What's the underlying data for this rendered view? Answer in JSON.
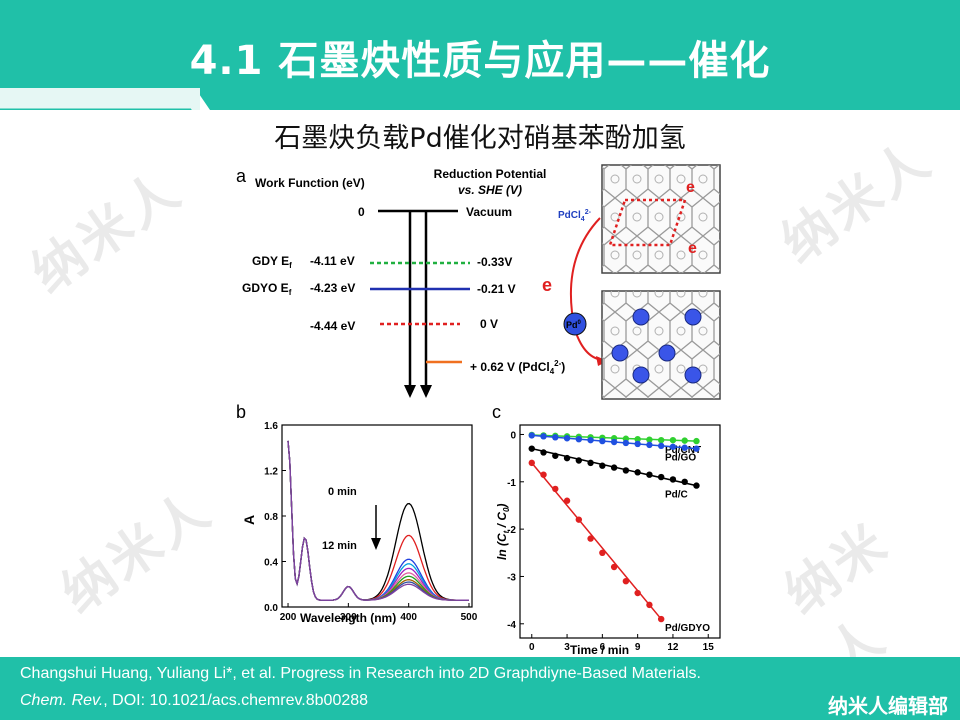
{
  "header": {
    "title": "4.1  石墨炔性质与应用——催化",
    "subtitle": "石墨炔负载Pd催化对硝基苯酚加氢",
    "bg_color": "#20c0a8"
  },
  "watermark": {
    "text": "纳米人"
  },
  "panel_a": {
    "label": "a",
    "left_header": "Work Function (eV)",
    "right_header_1": "Reduction Potential",
    "right_header_2": "vs. SHE (V)",
    "zero": "0",
    "vacuum": "Vacuum",
    "gdy": "GDY E",
    "gdy_sub": "f",
    "gdy_val": "-4.11 eV",
    "gdy_pot": "-0.33V",
    "gdyo": "GDYO E",
    "gdyo_sub": "f",
    "gdyo_val": "-4.23 eV",
    "gdyo_pot": "-0.21 V",
    "she_val": "-4.44 eV",
    "she_pot": "0 V",
    "pd_pot_a": "+ 0.62 V (PdCl",
    "pd_pot_b": "4",
    "pd_pot_c": "2-",
    "pd_pot_d": ")",
    "pdcl_a": "PdCl",
    "pdcl_b": "4",
    "pdcl_c": "2-",
    "e_label": "e",
    "pd_label": "Pd",
    "pd_sup": "0"
  },
  "chart_data": [
    {
      "type": "line",
      "panel": "b",
      "xlabel": "Wavelength (nm)",
      "ylabel": "A",
      "xlim": [
        190,
        505
      ],
      "ylim": [
        0.0,
        1.6
      ],
      "x_ticks": [
        "200",
        "300",
        "400",
        "500"
      ],
      "y_ticks": [
        "0.0",
        "0.4",
        "0.8",
        "1.2",
        "1.6"
      ],
      "annotations": [
        "0 min",
        "12 min"
      ],
      "series": [
        {
          "peak": 0.85,
          "color": "#000000"
        },
        {
          "peak": 0.57,
          "color": "#e02020"
        },
        {
          "peak": 0.36,
          "color": "#2040e0"
        },
        {
          "peak": 0.32,
          "color": "#00a0e0"
        },
        {
          "peak": 0.28,
          "color": "#a020c0"
        },
        {
          "peak": 0.24,
          "color": "#e060a0"
        },
        {
          "peak": 0.21,
          "color": "#20a020"
        },
        {
          "peak": 0.18,
          "color": "#a06000"
        },
        {
          "peak": 0.16,
          "color": "#3050a0"
        },
        {
          "peak": 0.14,
          "color": "#8040a0"
        }
      ]
    },
    {
      "type": "scatter",
      "panel": "c",
      "xlabel": "Time / min",
      "ylim": [
        -4.3,
        0.2
      ],
      "xlim": [
        -1,
        16
      ],
      "x_ticks": [
        "0",
        "3",
        "6",
        "9",
        "12",
        "15"
      ],
      "y_ticks": [
        "0",
        "-1",
        "-2",
        "-3",
        "-4"
      ],
      "series": [
        {
          "name": "Pd/CNT",
          "color": "#30d030",
          "x": [
            0,
            1,
            2,
            3,
            4,
            5,
            6,
            7,
            8,
            9,
            10,
            11,
            12,
            13,
            14
          ],
          "y": [
            -0.01,
            -0.02,
            -0.03,
            -0.04,
            -0.05,
            -0.06,
            -0.07,
            -0.08,
            -0.09,
            -0.1,
            -0.11,
            -0.12,
            -0.12,
            -0.13,
            -0.14
          ]
        },
        {
          "name": "Pd/GO",
          "color": "#2050e0",
          "x": [
            0,
            1,
            2,
            3,
            4,
            5,
            6,
            7,
            8,
            9,
            10,
            11,
            12,
            13,
            14
          ],
          "y": [
            -0.02,
            -0.04,
            -0.06,
            -0.08,
            -0.1,
            -0.12,
            -0.14,
            -0.16,
            -0.18,
            -0.2,
            -0.22,
            -0.24,
            -0.26,
            -0.28,
            -0.3
          ]
        },
        {
          "name": "Pd/C",
          "color": "#000000",
          "x": [
            0,
            1,
            2,
            3,
            4,
            5,
            6,
            7,
            8,
            9,
            10,
            11,
            12,
            13,
            14
          ],
          "y": [
            -0.3,
            -0.38,
            -0.45,
            -0.5,
            -0.55,
            -0.6,
            -0.66,
            -0.7,
            -0.76,
            -0.8,
            -0.85,
            -0.9,
            -0.95,
            -1.0,
            -1.08
          ]
        },
        {
          "name": "Pd/GDYO",
          "color": "#e02020",
          "x": [
            0,
            1,
            2,
            3,
            4,
            5,
            6,
            7,
            8,
            9,
            10,
            11
          ],
          "y": [
            -0.6,
            -0.85,
            -1.15,
            -1.4,
            -1.8,
            -2.2,
            -2.5,
            -2.8,
            -3.1,
            -3.35,
            -3.6,
            -3.9
          ]
        }
      ]
    }
  ],
  "footer": {
    "citation_line1": "Changshui Huang, Yuliang Li*, et al. Progress in Research into 2D Graphdiyne-Based Materials.",
    "journal": "Chem. Rev.",
    "citation_line2_rest": ", DOI: 10.1021/acs.chemrev.8b00288",
    "brand": "纳米人编辑部"
  }
}
